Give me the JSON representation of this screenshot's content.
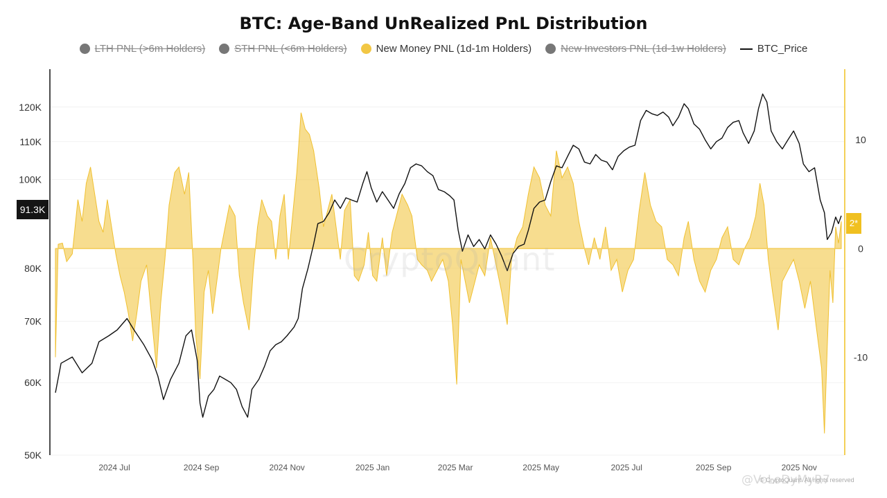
{
  "chart_data": {
    "type": "area",
    "title": "BTC: Age-Band UnRealized PnL Distribution",
    "legend": [
      {
        "key": "lth",
        "label": "LTH PNL (>6m Holders)",
        "color": "#777777",
        "hidden": true,
        "marker": "dot"
      },
      {
        "key": "sth",
        "label": "STH PNL (<6m Holders)",
        "color": "#777777",
        "hidden": true,
        "marker": "dot"
      },
      {
        "key": "new_money",
        "label": "New Money PNL (1d-1m Holders)",
        "color": "#f2c744",
        "hidden": false,
        "marker": "dot"
      },
      {
        "key": "new_investors",
        "label": "New Investors PNL (1d-1w Holders)",
        "color": "#777777",
        "hidden": true,
        "marker": "dot"
      },
      {
        "key": "btc_price",
        "label": "BTC_Price",
        "color": "#111111",
        "hidden": false,
        "marker": "line"
      }
    ],
    "x_range": [
      "2024-05-20",
      "2025-12-01"
    ],
    "x_ticks": [
      {
        "date": "2024-07-01",
        "label": "2024 Jul"
      },
      {
        "date": "2024-09-01",
        "label": "2024 Sep"
      },
      {
        "date": "2024-11-01",
        "label": "2024 Nov"
      },
      {
        "date": "2025-01-01",
        "label": "2025 Jan"
      },
      {
        "date": "2025-03-01",
        "label": "2025 Mar"
      },
      {
        "date": "2025-05-01",
        "label": "2025 May"
      },
      {
        "date": "2025-07-01",
        "label": "2025 Jul"
      },
      {
        "date": "2025-09-01",
        "label": "2025 Sep"
      },
      {
        "date": "2025-11-01",
        "label": "2025 Nov"
      }
    ],
    "y_left": {
      "scale": "log",
      "range": [
        50000,
        132000
      ],
      "ticks": [
        {
          "v": 50000,
          "label": "50K"
        },
        {
          "v": 60000,
          "label": "60K"
        },
        {
          "v": 70000,
          "label": "70K"
        },
        {
          "v": 80000,
          "label": "80K"
        },
        {
          "v": 100000,
          "label": "100K"
        },
        {
          "v": 110000,
          "label": "110K"
        },
        {
          "v": 120000,
          "label": "120K"
        }
      ]
    },
    "y_right": {
      "scale": "linear",
      "range": [
        -19,
        16.5
      ],
      "ticks": [
        {
          "v": 10,
          "label": "10"
        },
        {
          "v": 0,
          "label": "0"
        },
        {
          "v": -10,
          "label": "-10"
        }
      ]
    },
    "last_price_label": "91.3K",
    "last_pnl_label": "2*",
    "btc_price": [
      [
        "2024-05-20",
        58500
      ],
      [
        "2024-05-24",
        63000
      ],
      [
        "2024-06-01",
        64000
      ],
      [
        "2024-06-08",
        61500
      ],
      [
        "2024-06-15",
        63000
      ],
      [
        "2024-06-20",
        66500
      ],
      [
        "2024-06-27",
        67500
      ],
      [
        "2024-07-03",
        68500
      ],
      [
        "2024-07-10",
        70500
      ],
      [
        "2024-07-15",
        68500
      ],
      [
        "2024-07-22",
        66000
      ],
      [
        "2024-07-28",
        63500
      ],
      [
        "2024-08-01",
        61000
      ],
      [
        "2024-08-05",
        57500
      ],
      [
        "2024-08-10",
        60500
      ],
      [
        "2024-08-16",
        63000
      ],
      [
        "2024-08-21",
        67500
      ],
      [
        "2024-08-25",
        68500
      ],
      [
        "2024-08-29",
        63500
      ],
      [
        "2024-08-31",
        57000
      ],
      [
        "2024-09-02",
        55000
      ],
      [
        "2024-09-06",
        58000
      ],
      [
        "2024-09-10",
        59000
      ],
      [
        "2024-09-14",
        61000
      ],
      [
        "2024-09-18",
        60500
      ],
      [
        "2024-09-22",
        60000
      ],
      [
        "2024-09-26",
        59000
      ],
      [
        "2024-09-30",
        56500
      ],
      [
        "2024-10-04",
        55000
      ],
      [
        "2024-10-07",
        59000
      ],
      [
        "2024-10-12",
        60500
      ],
      [
        "2024-10-16",
        62500
      ],
      [
        "2024-10-20",
        65000
      ],
      [
        "2024-10-24",
        66000
      ],
      [
        "2024-10-28",
        66500
      ],
      [
        "2024-11-01",
        67500
      ],
      [
        "2024-11-06",
        69000
      ],
      [
        "2024-11-09",
        70500
      ],
      [
        "2024-11-12",
        76000
      ],
      [
        "2024-11-16",
        80000
      ],
      [
        "2024-11-20",
        85000
      ],
      [
        "2024-11-23",
        89500
      ],
      [
        "2024-11-27",
        90000
      ],
      [
        "2024-12-01",
        92000
      ],
      [
        "2024-12-05",
        95000
      ],
      [
        "2024-12-09",
        93000
      ],
      [
        "2024-12-13",
        95500
      ],
      [
        "2024-12-17",
        95000
      ],
      [
        "2024-12-21",
        94500
      ],
      [
        "2024-12-25",
        99000
      ],
      [
        "2024-12-28",
        102000
      ],
      [
        "2024-12-31",
        98000
      ],
      [
        "2025-01-04",
        94500
      ],
      [
        "2025-01-08",
        97000
      ],
      [
        "2025-01-12",
        95000
      ],
      [
        "2025-01-16",
        93000
      ],
      [
        "2025-01-20",
        96500
      ],
      [
        "2025-01-24",
        99000
      ],
      [
        "2025-01-28",
        103000
      ],
      [
        "2025-02-01",
        104000
      ],
      [
        "2025-02-05",
        103500
      ],
      [
        "2025-02-09",
        102000
      ],
      [
        "2025-02-13",
        101000
      ],
      [
        "2025-02-17",
        97500
      ],
      [
        "2025-02-21",
        97000
      ],
      [
        "2025-02-25",
        96000
      ],
      [
        "2025-02-28",
        95000
      ],
      [
        "2025-03-03",
        88000
      ],
      [
        "2025-03-06",
        83500
      ],
      [
        "2025-03-10",
        87000
      ],
      [
        "2025-03-14",
        84500
      ],
      [
        "2025-03-18",
        86000
      ],
      [
        "2025-03-22",
        84000
      ],
      [
        "2025-03-26",
        87000
      ],
      [
        "2025-03-30",
        85000
      ],
      [
        "2025-04-03",
        82500
      ],
      [
        "2025-04-07",
        79500
      ],
      [
        "2025-04-11",
        83000
      ],
      [
        "2025-04-15",
        84500
      ],
      [
        "2025-04-19",
        85000
      ],
      [
        "2025-04-22",
        88000
      ],
      [
        "2025-04-26",
        93000
      ],
      [
        "2025-04-30",
        94500
      ],
      [
        "2025-05-04",
        95000
      ],
      [
        "2025-05-08",
        99500
      ],
      [
        "2025-05-12",
        103500
      ],
      [
        "2025-05-16",
        103000
      ],
      [
        "2025-05-20",
        106000
      ],
      [
        "2025-05-24",
        109000
      ],
      [
        "2025-05-28",
        108000
      ],
      [
        "2025-06-01",
        104500
      ],
      [
        "2025-06-05",
        104000
      ],
      [
        "2025-06-09",
        106500
      ],
      [
        "2025-06-13",
        105000
      ],
      [
        "2025-06-17",
        104500
      ],
      [
        "2025-06-21",
        102500
      ],
      [
        "2025-06-25",
        106000
      ],
      [
        "2025-06-29",
        107500
      ],
      [
        "2025-07-03",
        108500
      ],
      [
        "2025-07-07",
        109000
      ],
      [
        "2025-07-11",
        116000
      ],
      [
        "2025-07-15",
        119000
      ],
      [
        "2025-07-19",
        118000
      ],
      [
        "2025-07-23",
        117500
      ],
      [
        "2025-07-27",
        118500
      ],
      [
        "2025-07-31",
        117000
      ],
      [
        "2025-08-03",
        114500
      ],
      [
        "2025-08-07",
        117000
      ],
      [
        "2025-08-11",
        121000
      ],
      [
        "2025-08-14",
        119500
      ],
      [
        "2025-08-18",
        115000
      ],
      [
        "2025-08-22",
        113500
      ],
      [
        "2025-08-26",
        110500
      ],
      [
        "2025-08-30",
        108000
      ],
      [
        "2025-09-03",
        110000
      ],
      [
        "2025-09-07",
        111000
      ],
      [
        "2025-09-11",
        114000
      ],
      [
        "2025-09-15",
        115500
      ],
      [
        "2025-09-19",
        116000
      ],
      [
        "2025-09-22",
        112500
      ],
      [
        "2025-09-26",
        109500
      ],
      [
        "2025-09-30",
        113000
      ],
      [
        "2025-10-03",
        119500
      ],
      [
        "2025-10-06",
        124000
      ],
      [
        "2025-10-09",
        121500
      ],
      [
        "2025-10-12",
        113000
      ],
      [
        "2025-10-16",
        110000
      ],
      [
        "2025-10-20",
        108000
      ],
      [
        "2025-10-24",
        110500
      ],
      [
        "2025-10-28",
        113000
      ],
      [
        "2025-11-01",
        109500
      ],
      [
        "2025-11-04",
        104000
      ],
      [
        "2025-11-08",
        102000
      ],
      [
        "2025-11-12",
        103000
      ],
      [
        "2025-11-16",
        95000
      ],
      [
        "2025-11-19",
        92000
      ],
      [
        "2025-11-21",
        86000
      ],
      [
        "2025-11-24",
        87500
      ],
      [
        "2025-11-27",
        91000
      ],
      [
        "2025-11-29",
        89500
      ],
      [
        "2025-12-01",
        91300
      ]
    ],
    "new_money_pnl": [
      [
        "2024-05-20",
        -10
      ],
      [
        "2024-05-22",
        0.4
      ],
      [
        "2024-05-25",
        0.5
      ],
      [
        "2024-05-28",
        -1.2
      ],
      [
        "2024-06-01",
        -0.5
      ],
      [
        "2024-06-05",
        4.5
      ],
      [
        "2024-06-08",
        2.5
      ],
      [
        "2024-06-11",
        6
      ],
      [
        "2024-06-14",
        7.5
      ],
      [
        "2024-06-17",
        5
      ],
      [
        "2024-06-20",
        2.5
      ],
      [
        "2024-06-23",
        1.5
      ],
      [
        "2024-06-26",
        4.5
      ],
      [
        "2024-06-29",
        2
      ],
      [
        "2024-07-02",
        -0.5
      ],
      [
        "2024-07-05",
        -2.5
      ],
      [
        "2024-07-08",
        -4
      ],
      [
        "2024-07-11",
        -6
      ],
      [
        "2024-07-14",
        -8.5
      ],
      [
        "2024-07-17",
        -6
      ],
      [
        "2024-07-20",
        -3
      ],
      [
        "2024-07-24",
        -1.5
      ],
      [
        "2024-07-28",
        -7
      ],
      [
        "2024-07-31",
        -11
      ],
      [
        "2024-08-03",
        -5
      ],
      [
        "2024-08-06",
        -1
      ],
      [
        "2024-08-09",
        4
      ],
      [
        "2024-08-13",
        7
      ],
      [
        "2024-08-16",
        7.5
      ],
      [
        "2024-08-20",
        5
      ],
      [
        "2024-08-23",
        7
      ],
      [
        "2024-08-26",
        -1
      ],
      [
        "2024-08-28",
        -8
      ],
      [
        "2024-08-31",
        -12
      ],
      [
        "2024-09-03",
        -4
      ],
      [
        "2024-09-06",
        -2
      ],
      [
        "2024-09-09",
        -6
      ],
      [
        "2024-09-12",
        -3
      ],
      [
        "2024-09-15",
        0
      ],
      [
        "2024-09-18",
        2
      ],
      [
        "2024-09-21",
        4
      ],
      [
        "2024-09-25",
        3
      ],
      [
        "2024-09-28",
        -2.5
      ],
      [
        "2024-10-01",
        -5
      ],
      [
        "2024-10-05",
        -7.5
      ],
      [
        "2024-10-08",
        -2
      ],
      [
        "2024-10-11",
        2
      ],
      [
        "2024-10-14",
        4.5
      ],
      [
        "2024-10-18",
        3
      ],
      [
        "2024-10-21",
        2.5
      ],
      [
        "2024-10-24",
        -1
      ],
      [
        "2024-10-27",
        3
      ],
      [
        "2024-10-30",
        5
      ],
      [
        "2024-11-02",
        -1
      ],
      [
        "2024-11-05",
        3
      ],
      [
        "2024-11-08",
        7
      ],
      [
        "2024-11-11",
        12.5
      ],
      [
        "2024-11-14",
        11
      ],
      [
        "2024-11-17",
        10.5
      ],
      [
        "2024-11-20",
        9
      ],
      [
        "2024-11-24",
        5.5
      ],
      [
        "2024-11-27",
        2
      ],
      [
        "2024-11-30",
        3.5
      ],
      [
        "2024-12-03",
        5
      ],
      [
        "2024-12-06",
        2
      ],
      [
        "2024-12-09",
        -1
      ],
      [
        "2024-12-12",
        3.5
      ],
      [
        "2024-12-16",
        4.5
      ],
      [
        "2024-12-19",
        -2.5
      ],
      [
        "2024-12-22",
        -3
      ],
      [
        "2024-12-26",
        -1.5
      ],
      [
        "2024-12-29",
        1.5
      ],
      [
        "2025-01-01",
        -2.5
      ],
      [
        "2025-01-04",
        -3
      ],
      [
        "2025-01-08",
        1
      ],
      [
        "2025-01-11",
        -2.5
      ],
      [
        "2025-01-15",
        1.5
      ],
      [
        "2025-01-18",
        3
      ],
      [
        "2025-01-22",
        5
      ],
      [
        "2025-01-26",
        4
      ],
      [
        "2025-01-29",
        3
      ],
      [
        "2025-02-02",
        -1
      ],
      [
        "2025-02-05",
        -1.5
      ],
      [
        "2025-02-09",
        -2
      ],
      [
        "2025-02-12",
        -3
      ],
      [
        "2025-02-16",
        -2
      ],
      [
        "2025-02-20",
        -1
      ],
      [
        "2025-02-24",
        -3
      ],
      [
        "2025-02-27",
        -7
      ],
      [
        "2025-03-02",
        -12.5
      ],
      [
        "2025-03-05",
        -1
      ],
      [
        "2025-03-08",
        -3
      ],
      [
        "2025-03-11",
        -5
      ],
      [
        "2025-03-15",
        -3
      ],
      [
        "2025-03-18",
        -1.5
      ],
      [
        "2025-03-22",
        -2.5
      ],
      [
        "2025-03-26",
        1
      ],
      [
        "2025-03-30",
        -1.5
      ],
      [
        "2025-04-03",
        -4
      ],
      [
        "2025-04-07",
        -7
      ],
      [
        "2025-04-10",
        -1
      ],
      [
        "2025-04-14",
        1
      ],
      [
        "2025-04-18",
        2
      ],
      [
        "2025-04-22",
        5
      ],
      [
        "2025-04-26",
        7.5
      ],
      [
        "2025-04-30",
        6.5
      ],
      [
        "2025-05-04",
        4
      ],
      [
        "2025-05-08",
        3
      ],
      [
        "2025-05-12",
        9
      ],
      [
        "2025-05-16",
        6.5
      ],
      [
        "2025-05-20",
        7.5
      ],
      [
        "2025-05-24",
        6
      ],
      [
        "2025-05-28",
        2.5
      ],
      [
        "2025-06-01",
        0
      ],
      [
        "2025-06-04",
        -1.5
      ],
      [
        "2025-06-08",
        1
      ],
      [
        "2025-06-12",
        -1
      ],
      [
        "2025-06-16",
        2
      ],
      [
        "2025-06-20",
        -2
      ],
      [
        "2025-06-24",
        -1
      ],
      [
        "2025-06-28",
        -4
      ],
      [
        "2025-07-02",
        -2
      ],
      [
        "2025-07-06",
        -1
      ],
      [
        "2025-07-10",
        3.5
      ],
      [
        "2025-07-14",
        7
      ],
      [
        "2025-07-18",
        4
      ],
      [
        "2025-07-22",
        2.5
      ],
      [
        "2025-07-26",
        2
      ],
      [
        "2025-07-30",
        -1
      ],
      [
        "2025-08-03",
        -1.5
      ],
      [
        "2025-08-07",
        -2.5
      ],
      [
        "2025-08-11",
        1
      ],
      [
        "2025-08-14",
        2.5
      ],
      [
        "2025-08-18",
        -1
      ],
      [
        "2025-08-22",
        -3
      ],
      [
        "2025-08-26",
        -4
      ],
      [
        "2025-08-30",
        -2
      ],
      [
        "2025-09-03",
        -1
      ],
      [
        "2025-09-07",
        1
      ],
      [
        "2025-09-11",
        2
      ],
      [
        "2025-09-15",
        -1
      ],
      [
        "2025-09-19",
        -1.5
      ],
      [
        "2025-09-23",
        0
      ],
      [
        "2025-09-27",
        1
      ],
      [
        "2025-10-01",
        3
      ],
      [
        "2025-10-04",
        6
      ],
      [
        "2025-10-07",
        4
      ],
      [
        "2025-10-10",
        -1
      ],
      [
        "2025-10-13",
        -4
      ],
      [
        "2025-10-17",
        -7.5
      ],
      [
        "2025-10-20",
        -3
      ],
      [
        "2025-10-24",
        -2
      ],
      [
        "2025-10-28",
        -1
      ],
      [
        "2025-11-01",
        -3
      ],
      [
        "2025-11-05",
        -5.5
      ],
      [
        "2025-11-09",
        -3
      ],
      [
        "2025-11-13",
        -7
      ],
      [
        "2025-11-17",
        -11
      ],
      [
        "2025-11-19",
        -17
      ],
      [
        "2025-11-21",
        -9
      ],
      [
        "2025-11-23",
        -2
      ],
      [
        "2025-11-25",
        -5
      ],
      [
        "2025-11-27",
        2
      ],
      [
        "2025-11-29",
        0.5
      ],
      [
        "2025-12-01",
        2.5
      ]
    ]
  },
  "overlays": {
    "watermark": "CryptoQuant",
    "credit": "© CryptoQuant. All rights reserved",
    "source_watermark": "@VoLoDyMyR7"
  }
}
